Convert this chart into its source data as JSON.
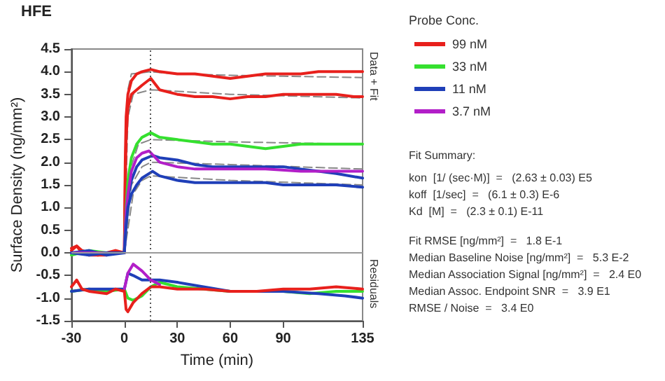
{
  "chart_data": {
    "type": "line",
    "title": "HFE",
    "xlabel": "Time (min)",
    "ylabel": "Surface Density (ng/mm²)",
    "legend_title": "Probe Conc.",
    "legend": "right",
    "marker": "none",
    "line_style": "solid",
    "grid": false,
    "xlim": [
      -30,
      135
    ],
    "xticks": [
      -30,
      0,
      30,
      60,
      90,
      135
    ],
    "ylim": [
      -1.5,
      4.5
    ],
    "yticks": [
      -1.5,
      {
        "value": -1,
        "label": "-1.0"
      },
      -0.5,
      {
        "value": 0,
        "label": "0.0"
      },
      0.5,
      {
        "value": 1,
        "label": "1.0"
      },
      1.5,
      {
        "value": 2,
        "label": "2.0"
      },
      2.5,
      {
        "value": 3,
        "label": "3.0"
      },
      3.5,
      {
        "value": 4,
        "label": "4.0"
      },
      4.5
    ],
    "ref_lines": [
      {
        "axis": "x",
        "value": 15,
        "color": "#555555",
        "line_style": "dotted"
      },
      {
        "axis": "y",
        "value": 0,
        "color": "#999999",
        "line_style": "solid"
      }
    ],
    "series": [
      {
        "name": "99 nM",
        "color": "#e8201c",
        "x": [
          -30,
          -27,
          -24,
          -20,
          -15,
          -10,
          -5,
          -2,
          0,
          0.5,
          1,
          2,
          4,
          7,
          10,
          15,
          20,
          30,
          40,
          50,
          60,
          70,
          80,
          90,
          100,
          110,
          120,
          130,
          135
        ],
        "values": [
          0.1,
          0.15,
          0.05,
          0.0,
          -0.05,
          0.0,
          0.05,
          0.0,
          0.0,
          2.0,
          3.0,
          3.5,
          3.8,
          3.95,
          4.0,
          4.05,
          4.0,
          3.95,
          3.95,
          3.9,
          3.85,
          3.9,
          3.95,
          3.95,
          3.95,
          4.0,
          4.0,
          4.0,
          4.0
        ]
      },
      {
        "color": "#e8201c",
        "x": [
          -30,
          -27,
          -24,
          -20,
          -10,
          -5,
          0,
          0.5,
          1,
          2,
          4,
          7,
          10,
          15,
          20,
          30,
          40,
          50,
          60,
          70,
          80,
          90,
          100,
          110,
          120,
          130,
          135
        ],
        "values": [
          0.05,
          0.15,
          0.0,
          -0.05,
          -0.05,
          0.05,
          0.0,
          1.5,
          2.5,
          3.2,
          3.5,
          3.6,
          3.7,
          3.85,
          3.6,
          3.5,
          3.45,
          3.45,
          3.4,
          3.45,
          3.45,
          3.5,
          3.5,
          3.5,
          3.5,
          3.45,
          3.45
        ]
      },
      {
        "name": "33 nM",
        "color": "#35e02f",
        "x": [
          -30,
          -20,
          -10,
          0,
          0.5,
          1,
          2,
          4,
          7,
          10,
          15,
          20,
          30,
          40,
          50,
          60,
          70,
          80,
          90,
          100,
          110,
          120,
          135
        ],
        "values": [
          -0.05,
          0.05,
          0.0,
          0.0,
          0.5,
          1.0,
          1.6,
          2.1,
          2.4,
          2.55,
          2.65,
          2.55,
          2.5,
          2.45,
          2.4,
          2.4,
          2.35,
          2.3,
          2.35,
          2.4,
          2.4,
          2.4,
          2.4
        ]
      },
      {
        "name": "11 nM",
        "color": "#1f3fb8",
        "x": [
          -30,
          -20,
          -10,
          0,
          1,
          2,
          4,
          7,
          10,
          16,
          20,
          30,
          40,
          50,
          60,
          70,
          80,
          90,
          100,
          110,
          120,
          135
        ],
        "values": [
          0.0,
          0.05,
          -0.05,
          0.0,
          0.8,
          1.2,
          1.6,
          1.9,
          2.05,
          2.15,
          2.1,
          2.05,
          1.95,
          1.9,
          1.9,
          1.9,
          1.9,
          1.9,
          1.85,
          1.8,
          1.75,
          1.65
        ]
      },
      {
        "name": "3.7 nM",
        "color": "#b21fc8",
        "x": [
          -30,
          -20,
          -10,
          0,
          1,
          2,
          4,
          7,
          10,
          14,
          20,
          30,
          40,
          60,
          80,
          100,
          120,
          135
        ],
        "values": [
          0.0,
          0.0,
          0.0,
          0.0,
          0.9,
          1.3,
          1.8,
          2.1,
          2.2,
          2.25,
          2.0,
          1.9,
          1.85,
          1.85,
          1.85,
          1.8,
          1.8,
          1.8
        ]
      },
      {
        "color": "#1f3fb8",
        "x": [
          -30,
          -20,
          -10,
          0,
          1,
          2,
          4,
          7,
          10,
          16,
          20,
          30,
          40,
          60,
          80,
          90,
          110,
          120,
          135
        ],
        "values": [
          0.0,
          -0.05,
          0.0,
          0.0,
          0.6,
          1.0,
          1.3,
          1.5,
          1.65,
          1.8,
          1.7,
          1.6,
          1.55,
          1.55,
          1.55,
          1.5,
          1.5,
          1.5,
          1.45
        ]
      },
      {
        "color": "#888888",
        "line_style": "dashed",
        "x": [
          0,
          1,
          2,
          4,
          15,
          30,
          60,
          90,
          135
        ],
        "values": [
          0,
          2.8,
          3.6,
          3.95,
          4.0,
          3.95,
          3.92,
          3.9,
          3.87
        ]
      },
      {
        "color": "#888888",
        "line_style": "dashed",
        "x": [
          0,
          2,
          5,
          15,
          60,
          135
        ],
        "values": [
          0,
          3.0,
          3.5,
          3.6,
          3.5,
          3.42
        ]
      },
      {
        "color": "#888888",
        "line_style": "dashed",
        "x": [
          0,
          3,
          8,
          15,
          60,
          135
        ],
        "values": [
          0,
          1.8,
          2.4,
          2.5,
          2.45,
          2.4
        ]
      },
      {
        "color": "#888888",
        "line_style": "dashed",
        "x": [
          0,
          4,
          10,
          15,
          60,
          135
        ],
        "values": [
          0,
          1.5,
          1.9,
          2.0,
          1.95,
          1.85
        ]
      },
      {
        "color": "#888888",
        "line_style": "dashed",
        "x": [
          0,
          5,
          10,
          15,
          60,
          135
        ],
        "values": [
          0,
          1.3,
          1.6,
          1.7,
          1.6,
          1.5
        ]
      },
      {
        "color": "#35e02f",
        "x": [
          -30,
          -20,
          -10,
          0,
          2,
          5,
          10,
          15,
          20,
          30,
          60,
          90,
          105,
          120,
          135
        ],
        "values": [
          -0.85,
          -0.8,
          -0.85,
          -0.8,
          -1.0,
          -1.05,
          -0.95,
          -0.75,
          -0.65,
          -0.75,
          -0.85,
          -0.85,
          -0.9,
          -0.85,
          -0.85
        ]
      },
      {
        "color": "#1f3fb8",
        "x": [
          -30,
          -20,
          -10,
          0,
          2,
          5,
          10,
          20,
          30,
          60,
          90,
          110,
          125,
          135
        ],
        "values": [
          -0.85,
          -0.8,
          -0.8,
          -0.8,
          -0.45,
          -0.5,
          -0.6,
          -0.6,
          -0.65,
          -0.85,
          -0.85,
          -0.9,
          -0.95,
          -1.0
        ]
      },
      {
        "color": "#b21fc8",
        "x": [
          0,
          2,
          5,
          10,
          15,
          20
        ],
        "values": [
          -0.8,
          -0.45,
          -0.25,
          -0.4,
          -0.6,
          -0.7
        ]
      },
      {
        "color": "#e8201c",
        "x": [
          -30,
          -27,
          -24,
          -20,
          -10,
          -5,
          0,
          1,
          2,
          5,
          10,
          15,
          20,
          30,
          45,
          60,
          75,
          90,
          105,
          120,
          135
        ],
        "values": [
          -0.75,
          -0.6,
          -0.8,
          -0.85,
          -0.9,
          -0.8,
          -0.85,
          -1.25,
          -1.3,
          -1.1,
          -0.9,
          -0.75,
          -0.75,
          -0.8,
          -0.8,
          -0.85,
          -0.85,
          -0.8,
          -0.8,
          -0.75,
          -0.8
        ]
      }
    ],
    "annotations": [
      "Data + Fit",
      "Residuals",
      "Fit Summary:",
      "kon  [1/ (sec·M)]  =   (2.63 ± 0.03) E5",
      "koff  [1/sec]  =   (6.1 ± 0.3) E-6",
      "Kd  [M]  =   (2.3 ± 0.1) E-11",
      "Fit RMSE [ng/mm²]  =   1.8 E-1",
      "Median Baseline Noise [ng/mm²]  =   5.3 E-2",
      "Median Association Signal [ng/mm²]  =   2.4 E0",
      "Median Assoc. Endpoint SNR  =   3.9 E1",
      "RMSE / Noise  =   3.4 E0"
    ]
  }
}
